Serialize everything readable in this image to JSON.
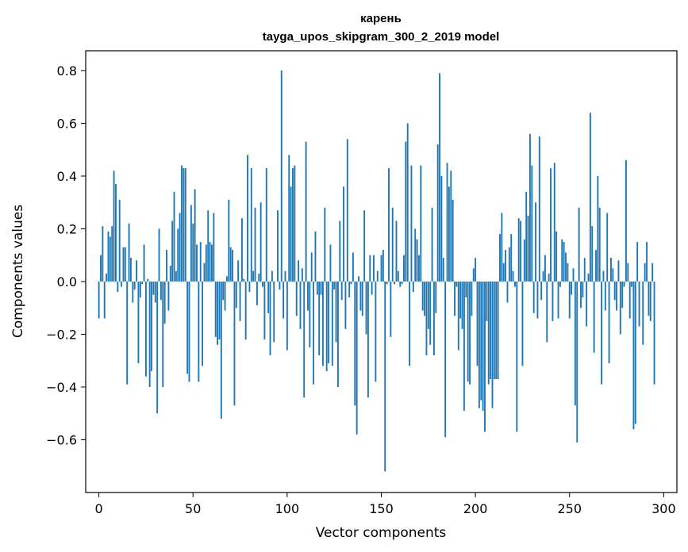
{
  "chart_data": {
    "type": "bar",
    "title": "карень",
    "subtitle": "tayga_upos_skipgram_300_2_2019 model",
    "xlabel": "Vector components",
    "ylabel": "Components values",
    "xlim": [
      -7,
      307
    ],
    "ylim": [
      -0.8,
      0.875
    ],
    "xticks": [
      0,
      50,
      100,
      150,
      200,
      250,
      300
    ],
    "yticks": [
      -0.6,
      -0.4,
      -0.2,
      0.0,
      0.2,
      0.4,
      0.6,
      0.8
    ],
    "xtick_labels": [
      "0",
      "50",
      "100",
      "150",
      "200",
      "250",
      "300"
    ],
    "ytick_labels": [
      "−0.6",
      "−0.4",
      "−0.2",
      "0.0",
      "0.2",
      "0.4",
      "0.6",
      "0.8"
    ],
    "bar_color": "#1f77b4",
    "grid": false,
    "values": [
      -0.14,
      0.1,
      0.21,
      -0.14,
      0.03,
      0.19,
      0.17,
      0.21,
      0.42,
      0.37,
      -0.04,
      0.31,
      -0.02,
      0.13,
      0.13,
      -0.39,
      0.22,
      0.09,
      -0.08,
      -0.03,
      0.08,
      -0.31,
      -0.06,
      -0.01,
      0.14,
      -0.36,
      0.01,
      -0.4,
      -0.34,
      -0.05,
      -0.08,
      -0.5,
      0.2,
      -0.07,
      -0.4,
      -0.16,
      0.12,
      -0.11,
      0.06,
      0.23,
      0.34,
      0.04,
      0.2,
      0.26,
      0.44,
      0.43,
      0.43,
      -0.35,
      -0.38,
      0.29,
      0.22,
      0.35,
      0.14,
      -0.38,
      0.15,
      -0.32,
      0.07,
      0.14,
      0.27,
      0.15,
      0.14,
      0.26,
      -0.21,
      -0.24,
      -0.22,
      -0.52,
      -0.07,
      -0.11,
      0.02,
      0.31,
      0.13,
      0.12,
      -0.47,
      -0.1,
      0.08,
      -0.15,
      0.24,
      0.01,
      -0.22,
      0.48,
      -0.04,
      0.43,
      0.04,
      0.28,
      -0.09,
      0.03,
      0.3,
      -0.02,
      -0.22,
      0.43,
      -0.12,
      -0.28,
      0.04,
      -0.23,
      0.0,
      0.27,
      -0.03,
      0.8,
      -0.14,
      0.04,
      -0.26,
      0.48,
      0.36,
      0.43,
      0.44,
      -0.13,
      0.08,
      -0.18,
      0.05,
      -0.44,
      0.53,
      -0.11,
      -0.25,
      0.11,
      -0.39,
      0.19,
      -0.05,
      -0.28,
      -0.05,
      -0.32,
      0.28,
      -0.34,
      -0.31,
      0.14,
      -0.32,
      -0.03,
      -0.23,
      -0.4,
      0.23,
      -0.07,
      0.36,
      -0.18,
      0.54,
      -0.06,
      -0.01,
      0.11,
      -0.47,
      -0.58,
      0.02,
      -0.11,
      -0.13,
      0.27,
      -0.2,
      -0.44,
      0.1,
      -0.05,
      0.1,
      -0.38,
      0.04,
      0.0,
      0.1,
      0.12,
      -0.72,
      -0.01,
      0.43,
      -0.21,
      0.28,
      -0.01,
      0.23,
      0.04,
      -0.02,
      -0.01,
      0.1,
      0.53,
      0.6,
      -0.32,
      0.44,
      -0.04,
      0.2,
      0.16,
      0.1,
      0.44,
      -0.11,
      -0.13,
      -0.28,
      -0.18,
      -0.24,
      0.28,
      -0.28,
      -0.12,
      0.52,
      0.79,
      0.4,
      0.09,
      -0.59,
      0.45,
      0.36,
      0.42,
      0.31,
      -0.13,
      -0.02,
      -0.26,
      -0.14,
      -0.18,
      -0.49,
      -0.06,
      -0.38,
      -0.39,
      -0.13,
      0.05,
      0.09,
      -0.32,
      -0.48,
      -0.45,
      -0.49,
      -0.57,
      -0.15,
      -0.39,
      -0.37,
      -0.48,
      -0.37,
      -0.37,
      -0.37,
      0.18,
      0.26,
      0.07,
      0.12,
      -0.08,
      0.13,
      0.18,
      0.04,
      -0.02,
      -0.57,
      0.24,
      0.23,
      -0.32,
      0.16,
      0.34,
      0.25,
      0.56,
      0.44,
      -0.12,
      0.3,
      -0.14,
      0.55,
      -0.07,
      0.04,
      0.1,
      -0.23,
      0.03,
      0.43,
      -0.15,
      0.45,
      0.19,
      -0.14,
      -0.02,
      0.16,
      0.15,
      0.11,
      0.07,
      -0.14,
      -0.05,
      0.05,
      -0.47,
      -0.61,
      0.28,
      -0.1,
      -0.06,
      0.09,
      -0.17,
      0.03,
      0.64,
      0.21,
      -0.27,
      0.12,
      0.4,
      0.28,
      -0.39,
      0.04,
      -0.11,
      0.26,
      -0.31,
      0.09,
      0.05,
      -0.07,
      -0.11,
      0.08,
      -0.2,
      -0.1,
      -0.02,
      0.46,
      0.07,
      -0.14,
      -0.02,
      -0.56,
      -0.54,
      0.15,
      -0.17,
      0.0,
      -0.24,
      0.07,
      0.15,
      -0.13,
      -0.15,
      0.07,
      -0.39
    ]
  }
}
